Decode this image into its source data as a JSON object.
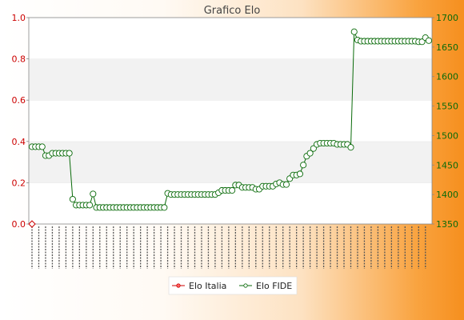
{
  "chart_data": {
    "type": "line",
    "title": "Grafico Elo",
    "left_axis": {
      "ylim": [
        0.0,
        1.0
      ],
      "ticks": [
        "0.0",
        "0.2",
        "0.4",
        "0.6",
        "0.8",
        "1.0"
      ]
    },
    "right_axis": {
      "ylim": [
        1350,
        1700
      ],
      "ticks": [
        "1350",
        "1400",
        "1450",
        "1500",
        "1550",
        "1600",
        "1650",
        "1700"
      ]
    },
    "grid": "horizontal alternating bands",
    "legend_position": "bottom-center",
    "x_labels_note": "x tick labels are dense monthly dates rendered as illegible overlapping text",
    "series": [
      {
        "name": "Elo Italia",
        "color": "#cc0000",
        "axis": "left",
        "values": [
          0
        ]
      },
      {
        "name": "Elo FIDE",
        "color": "#0a6b0a",
        "axis": "right",
        "values": [
          1481,
          1481,
          1481,
          1481,
          1466,
          1466,
          1470,
          1470,
          1470,
          1470,
          1470,
          1470,
          1392,
          1382,
          1382,
          1382,
          1382,
          1382,
          1401,
          1378,
          1378,
          1378,
          1378,
          1378,
          1378,
          1378,
          1378,
          1378,
          1378,
          1378,
          1378,
          1378,
          1378,
          1378,
          1378,
          1378,
          1378,
          1378,
          1378,
          1378,
          1402,
          1400,
          1400,
          1400,
          1400,
          1400,
          1400,
          1400,
          1400,
          1400,
          1400,
          1400,
          1400,
          1400,
          1400,
          1403,
          1407,
          1407,
          1407,
          1407,
          1416,
          1416,
          1412,
          1412,
          1412,
          1412,
          1409,
          1409,
          1414,
          1414,
          1414,
          1414,
          1418,
          1420,
          1417,
          1417,
          1427,
          1433,
          1433,
          1435,
          1450,
          1465,
          1470,
          1478,
          1485,
          1487,
          1487,
          1487,
          1487,
          1487,
          1485,
          1485,
          1485,
          1485,
          1480,
          1676,
          1662,
          1660,
          1660,
          1660,
          1660,
          1660,
          1660,
          1660,
          1660,
          1660,
          1660,
          1660,
          1660,
          1660,
          1660,
          1660,
          1660,
          1660,
          1659,
          1659,
          1666,
          1661
        ]
      }
    ]
  },
  "legend": {
    "items": [
      "Elo Italia",
      "Elo FIDE"
    ]
  }
}
